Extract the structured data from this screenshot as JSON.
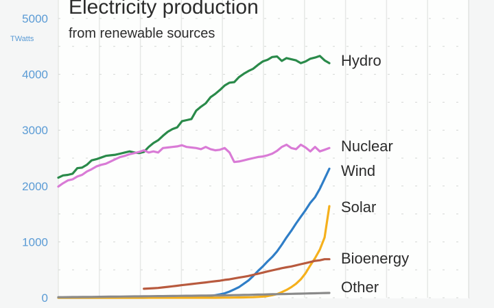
{
  "chart_data": {
    "type": "line",
    "title": "Electricity production",
    "subtitle": "from renewable sources",
    "xlabel": "",
    "ylabel": "TWatts",
    "ylim": [
      0,
      5000
    ],
    "xlim": [
      1965,
      2022
    ],
    "yticks": [
      "0",
      "1000",
      "2000",
      "3000",
      "4000",
      "5000"
    ],
    "ytick_values": [
      0,
      1000,
      2000,
      3000,
      4000,
      5000
    ],
    "grid": true,
    "legend": "inline-right",
    "x": [
      1965,
      1966,
      1967,
      1968,
      1969,
      1970,
      1971,
      1972,
      1973,
      1974,
      1975,
      1976,
      1977,
      1978,
      1979,
      1980,
      1981,
      1982,
      1983,
      1984,
      1985,
      1986,
      1987,
      1988,
      1989,
      1990,
      1991,
      1992,
      1993,
      1994,
      1995,
      1996,
      1997,
      1998,
      1999,
      2000,
      2001,
      2002,
      2003,
      2004,
      2005,
      2006,
      2007,
      2008,
      2009,
      2010,
      2011,
      2012,
      2013,
      2014,
      2015,
      2016,
      2017,
      2018,
      2019,
      2020,
      2021,
      2022
    ],
    "series": [
      {
        "name": "Hydro",
        "color": "#2a8a4a",
        "values": [
          2150,
          2190,
          2200,
          2220,
          2320,
          2330,
          2380,
          2460,
          2480,
          2510,
          2540,
          2550,
          2560,
          2580,
          2600,
          2620,
          2600,
          2590,
          2610,
          2700,
          2770,
          2820,
          2900,
          2970,
          3020,
          3050,
          3160,
          3180,
          3200,
          3350,
          3420,
          3480,
          3590,
          3650,
          3720,
          3800,
          3850,
          3860,
          3950,
          4010,
          4060,
          4100,
          4170,
          4230,
          4260,
          4310,
          4320,
          4240,
          4290,
          4270,
          4250,
          4200,
          4230,
          4280,
          4300,
          4330,
          4250,
          4200
        ]
      },
      {
        "name": "Nuclear",
        "color": "#d97bd6",
        "values": [
          1990,
          2050,
          2100,
          2120,
          2170,
          2200,
          2260,
          2300,
          2350,
          2380,
          2400,
          2440,
          2480,
          2520,
          2540,
          2570,
          2590,
          2610,
          2640,
          2600,
          2620,
          2600,
          2680,
          2690,
          2700,
          2710,
          2730,
          2700,
          2690,
          2680,
          2660,
          2700,
          2660,
          2640,
          2650,
          2680,
          2600,
          2430,
          2440,
          2460,
          2480,
          2500,
          2520,
          2530,
          2550,
          2580,
          2630,
          2700,
          2740,
          2680,
          2660,
          2740,
          2690,
          2620,
          2700,
          2620,
          2650,
          2680
        ]
      },
      {
        "name": "Wind",
        "color": "#2f7ec7",
        "values": [
          0,
          0,
          0,
          0,
          0,
          0,
          0,
          0,
          0,
          0,
          0,
          0,
          0,
          0,
          0,
          0,
          0,
          0,
          0,
          1,
          2,
          3,
          4,
          5,
          6,
          8,
          10,
          12,
          15,
          18,
          22,
          27,
          35,
          45,
          60,
          80,
          110,
          150,
          190,
          250,
          310,
          390,
          480,
          560,
          650,
          730,
          830,
          950,
          1080,
          1200,
          1330,
          1450,
          1570,
          1700,
          1800,
          1950,
          2130,
          2310
        ]
      },
      {
        "name": "Solar",
        "color": "#f5b01c",
        "values": [
          0,
          0,
          0,
          0,
          0,
          0,
          0,
          0,
          0,
          0,
          0,
          0,
          0,
          0,
          0,
          0,
          0,
          0,
          0,
          0,
          0,
          0,
          0,
          0,
          0,
          0,
          0,
          0,
          0,
          0,
          0,
          0,
          0,
          0,
          1,
          2,
          3,
          4,
          5,
          6,
          8,
          10,
          15,
          20,
          30,
          45,
          65,
          100,
          140,
          190,
          250,
          330,
          440,
          580,
          710,
          860,
          1080,
          1640
        ]
      },
      {
        "name": "Bioenergy",
        "color": "#b85a3e",
        "values": [
          null,
          null,
          null,
          null,
          null,
          null,
          null,
          null,
          null,
          null,
          null,
          null,
          null,
          null,
          null,
          null,
          null,
          null,
          160,
          165,
          170,
          175,
          185,
          195,
          205,
          215,
          225,
          235,
          245,
          255,
          265,
          275,
          285,
          295,
          305,
          320,
          330,
          345,
          360,
          375,
          390,
          410,
          430,
          450,
          470,
          490,
          510,
          530,
          545,
          560,
          580,
          600,
          620,
          640,
          660,
          670,
          690,
          690
        ]
      },
      {
        "name": "Other",
        "color": "#8a8a8a",
        "values": [
          10,
          10,
          11,
          12,
          12,
          13,
          14,
          15,
          16,
          17,
          18,
          19,
          20,
          21,
          22,
          23,
          24,
          25,
          26,
          27,
          28,
          29,
          30,
          31,
          32,
          33,
          34,
          35,
          36,
          37,
          38,
          39,
          40,
          41,
          42,
          43,
          44,
          46,
          48,
          50,
          52,
          54,
          56,
          58,
          60,
          62,
          64,
          66,
          68,
          70,
          72,
          74,
          76,
          78,
          80,
          82,
          84,
          86
        ]
      }
    ]
  }
}
